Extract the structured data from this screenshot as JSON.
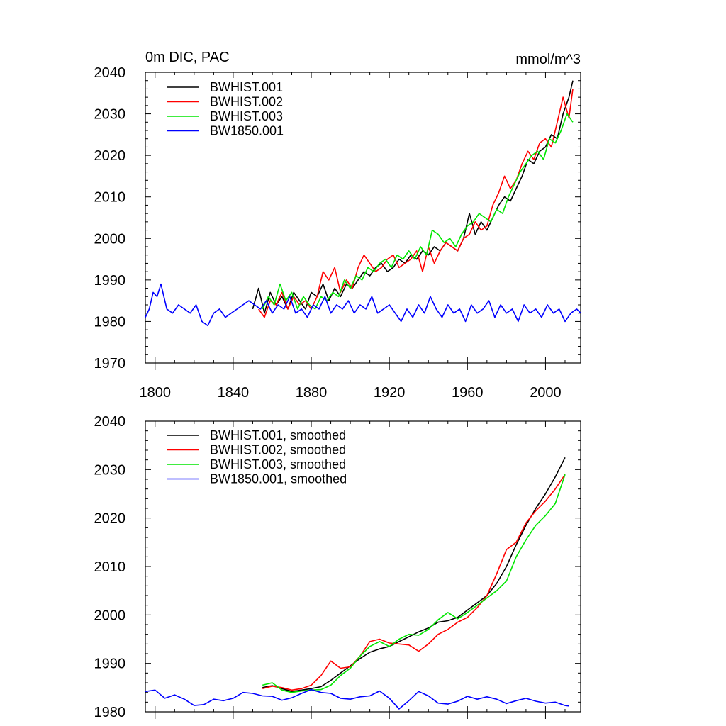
{
  "chart_data": [
    {
      "type": "line",
      "title": "0m DIC, PAC",
      "units": "mmol/m^3",
      "xlim": [
        1795,
        2018
      ],
      "ylim": [
        1970,
        2040
      ],
      "xticks": [
        1800,
        1840,
        1880,
        1920,
        1960,
        2000
      ],
      "xtick_labels": [
        "1800",
        "1840",
        "1880",
        "1920",
        "1960",
        "2000"
      ],
      "yticks": [
        1970,
        1980,
        1990,
        2000,
        2010,
        2020,
        2030,
        2040
      ],
      "ytick_labels": [
        "1970",
        "1980",
        "1990",
        "2000",
        "2010",
        "2020",
        "2030",
        "2040"
      ],
      "legend": "top-left",
      "series": [
        {
          "name": "BWHIST.001",
          "color": "#000000",
          "x": [
            1850,
            1853,
            1856,
            1859,
            1862,
            1865,
            1868,
            1871,
            1874,
            1877,
            1880,
            1883,
            1886,
            1889,
            1892,
            1895,
            1898,
            1901,
            1904,
            1907,
            1910,
            1913,
            1916,
            1919,
            1922,
            1925,
            1928,
            1931,
            1934,
            1937,
            1940,
            1943,
            1946,
            1949,
            1952,
            1955,
            1958,
            1961,
            1964,
            1967,
            1970,
            1973,
            1976,
            1979,
            1982,
            1985,
            1988,
            1991,
            1994,
            1997,
            2000,
            2003,
            2006,
            2009,
            2012,
            2014
          ],
          "values": [
            1983,
            1988,
            1982,
            1987,
            1984,
            1986,
            1983,
            1987,
            1985,
            1983,
            1987,
            1986,
            1989,
            1985,
            1988,
            1986,
            1989,
            1988,
            1990,
            1992,
            1991,
            1993,
            1994,
            1992,
            1993,
            1995,
            1994,
            1996,
            1995,
            1997,
            1996,
            1998,
            1997,
            1999,
            1998,
            1997,
            2000,
            2006,
            2001,
            2004,
            2002,
            2005,
            2008,
            2010,
            2009,
            2012,
            2015,
            2019,
            2018,
            2021,
            2022,
            2025,
            2024,
            2030,
            2034,
            2038
          ]
        },
        {
          "name": "BWHIST.002",
          "color": "#ff0000",
          "x": [
            1853,
            1856,
            1859,
            1862,
            1865,
            1868,
            1871,
            1874,
            1877,
            1880,
            1883,
            1886,
            1889,
            1892,
            1895,
            1898,
            1901,
            1904,
            1907,
            1910,
            1913,
            1916,
            1919,
            1922,
            1925,
            1928,
            1931,
            1934,
            1937,
            1940,
            1943,
            1946,
            1949,
            1952,
            1955,
            1958,
            1961,
            1964,
            1967,
            1970,
            1973,
            1976,
            1979,
            1982,
            1985,
            1988,
            1991,
            1994,
            1997,
            2000,
            2003,
            2006,
            2009,
            2012,
            2014
          ],
          "values": [
            1983,
            1981,
            1985,
            1984,
            1987,
            1983,
            1986,
            1984,
            1985,
            1983,
            1986,
            1992,
            1990,
            1993,
            1987,
            1990,
            1988,
            1993,
            1996,
            1994,
            1992,
            1993,
            1995,
            1996,
            1993,
            1994,
            1995,
            1997,
            1992,
            1998,
            1994,
            1997,
            1999,
            1998,
            1997,
            2000,
            2001,
            2004,
            2002,
            2003,
            2008,
            2011,
            2015,
            2012,
            2014,
            2018,
            2021,
            2019,
            2023,
            2024,
            2022,
            2028,
            2034,
            2029,
            2036
          ]
        },
        {
          "name": "BWHIST.003",
          "color": "#00e600",
          "x": [
            1855,
            1858,
            1861,
            1864,
            1867,
            1870,
            1873,
            1876,
            1879,
            1882,
            1885,
            1888,
            1891,
            1894,
            1897,
            1900,
            1903,
            1906,
            1909,
            1912,
            1915,
            1918,
            1921,
            1924,
            1927,
            1930,
            1933,
            1936,
            1939,
            1942,
            1945,
            1948,
            1951,
            1954,
            1957,
            1960,
            1963,
            1966,
            1969,
            1972,
            1975,
            1978,
            1981,
            1984,
            1987,
            1990,
            1993,
            1996,
            1999,
            2002,
            2005,
            2008,
            2011,
            2014
          ],
          "values": [
            1983,
            1986,
            1984,
            1989,
            1985,
            1987,
            1983,
            1986,
            1984,
            1983,
            1986,
            1985,
            1987,
            1986,
            1990,
            1988,
            1991,
            1990,
            1993,
            1992,
            1994,
            1995,
            1993,
            1996,
            1995,
            1997,
            1995,
            1998,
            1996,
            2002,
            2001,
            1999,
            2000,
            1998,
            2001,
            2003,
            2004,
            2006,
            2005,
            2004,
            2007,
            2006,
            2010,
            2013,
            2016,
            2018,
            2020,
            2021,
            2019,
            2024,
            2023,
            2026,
            2030,
            2028
          ]
        },
        {
          "name": "BW1850.001",
          "color": "#0000ff",
          "x": [
            1795,
            1797,
            1799,
            1801,
            1803,
            1806,
            1809,
            1812,
            1815,
            1818,
            1821,
            1824,
            1827,
            1830,
            1833,
            1836,
            1839,
            1842,
            1845,
            1848,
            1851,
            1854,
            1857,
            1860,
            1863,
            1866,
            1869,
            1872,
            1875,
            1878,
            1881,
            1884,
            1887,
            1890,
            1893,
            1896,
            1899,
            1902,
            1905,
            1908,
            1911,
            1914,
            1917,
            1920,
            1923,
            1926,
            1929,
            1932,
            1935,
            1938,
            1941,
            1944,
            1947,
            1950,
            1953,
            1956,
            1959,
            1962,
            1965,
            1968,
            1971,
            1974,
            1977,
            1980,
            1983,
            1986,
            1989,
            1992,
            1995,
            1998,
            2001,
            2004,
            2007,
            2010,
            2013,
            2016,
            2018
          ],
          "values": [
            1981,
            1983,
            1987,
            1986,
            1989,
            1983,
            1982,
            1984,
            1983,
            1982,
            1984,
            1980,
            1979,
            1982,
            1983,
            1981,
            1982,
            1983,
            1984,
            1985,
            1984,
            1983,
            1985,
            1982,
            1984,
            1983,
            1986,
            1982,
            1983,
            1981,
            1984,
            1983,
            1986,
            1982,
            1984,
            1983,
            1985,
            1982,
            1984,
            1983,
            1986,
            1982,
            1983,
            1984,
            1982,
            1980,
            1983,
            1981,
            1984,
            1982,
            1986,
            1983,
            1981,
            1984,
            1982,
            1983,
            1980,
            1984,
            1982,
            1983,
            1985,
            1981,
            1984,
            1982,
            1983,
            1980,
            1984,
            1982,
            1983,
            1981,
            1984,
            1982,
            1983,
            1980,
            1982,
            1983,
            1982
          ]
        }
      ]
    },
    {
      "type": "line",
      "title": "",
      "units": "",
      "xlim": [
        1795,
        2018
      ],
      "ylim": [
        1980,
        2040
      ],
      "xticks": [
        1800,
        1840,
        1880,
        1920,
        1960,
        2000
      ],
      "xtick_labels": [],
      "yticks": [
        1980,
        1990,
        2000,
        2010,
        2020,
        2030,
        2040
      ],
      "ytick_labels": [
        "1980",
        "1990",
        "2000",
        "2010",
        "2020",
        "2030",
        "2040"
      ],
      "legend": "top-left",
      "series": [
        {
          "name": "BWHIST.001, smoothed",
          "color": "#000000",
          "x": [
            1855,
            1860,
            1865,
            1870,
            1875,
            1880,
            1885,
            1890,
            1895,
            1900,
            1905,
            1910,
            1915,
            1920,
            1925,
            1930,
            1935,
            1940,
            1945,
            1950,
            1955,
            1960,
            1965,
            1970,
            1975,
            1980,
            1985,
            1990,
            1995,
            2000,
            2005,
            2010
          ],
          "values": [
            1985,
            1985.4,
            1984.8,
            1984.2,
            1984.5,
            1984.8,
            1985.2,
            1986.5,
            1988,
            1989.5,
            1991,
            1992.3,
            1993,
            1993.5,
            1994.5,
            1995.5,
            1996.5,
            1997.3,
            1998.5,
            1998.8,
            1999.5,
            2001,
            2002.5,
            2004,
            2006.5,
            2010,
            2014.5,
            2018.5,
            2022,
            2025,
            2028.5,
            2032.5
          ]
        },
        {
          "name": "BWHIST.002, smoothed",
          "color": "#ff0000",
          "x": [
            1855,
            1860,
            1865,
            1870,
            1875,
            1880,
            1885,
            1890,
            1895,
            1900,
            1905,
            1910,
            1915,
            1920,
            1925,
            1930,
            1935,
            1940,
            1945,
            1950,
            1955,
            1960,
            1965,
            1970,
            1975,
            1980,
            1985,
            1990,
            1995,
            2000,
            2005,
            2010
          ],
          "values": [
            1984.8,
            1985.3,
            1985,
            1984.5,
            1984.8,
            1985.5,
            1987.5,
            1990.5,
            1989,
            1989.3,
            1991.5,
            1994.5,
            1995,
            1994.2,
            1994,
            1993.8,
            1992.5,
            1994,
            1996,
            1997,
            1998.5,
            1999.5,
            2001.5,
            2004,
            2008.5,
            2013.5,
            2015,
            2019,
            2021.5,
            2023.5,
            2026,
            2029
          ]
        },
        {
          "name": "BWHIST.003, smoothed",
          "color": "#00e600",
          "x": [
            1855,
            1860,
            1865,
            1870,
            1875,
            1880,
            1885,
            1890,
            1895,
            1900,
            1905,
            1910,
            1915,
            1920,
            1925,
            1930,
            1935,
            1940,
            1945,
            1950,
            1955,
            1960,
            1965,
            1970,
            1975,
            1980,
            1985,
            1990,
            1995,
            2000,
            2005,
            2010
          ],
          "values": [
            1985.5,
            1986,
            1984.5,
            1984,
            1984.3,
            1984.5,
            1984.6,
            1985.5,
            1987.5,
            1989,
            1991.5,
            1993.5,
            1994.5,
            1993.5,
            1995,
            1996,
            1995.8,
            1997,
            1999,
            2000.5,
            1999.2,
            2000.5,
            2002,
            2003.5,
            2005,
            2007,
            2012,
            2015.5,
            2018.5,
            2020.5,
            2023,
            2029
          ]
        },
        {
          "name": "BW1850.001, smoothed",
          "color": "#0000ff",
          "x": [
            1795,
            1800,
            1805,
            1810,
            1815,
            1820,
            1825,
            1830,
            1835,
            1840,
            1845,
            1850,
            1855,
            1860,
            1865,
            1870,
            1875,
            1880,
            1885,
            1890,
            1895,
            1900,
            1905,
            1910,
            1915,
            1920,
            1925,
            1930,
            1935,
            1940,
            1945,
            1950,
            1955,
            1960,
            1965,
            1970,
            1975,
            1980,
            1985,
            1990,
            1995,
            2000,
            2005,
            2010,
            2012
          ],
          "values": [
            1984.2,
            1984.5,
            1982.8,
            1983.5,
            1982.6,
            1981.3,
            1981.5,
            1982.6,
            1982.3,
            1982.8,
            1984,
            1983.8,
            1983.3,
            1983.2,
            1982.4,
            1982.9,
            1983.8,
            1984.6,
            1984,
            1983.8,
            1982.8,
            1982.6,
            1983.1,
            1983.3,
            1984.3,
            1982.8,
            1980.6,
            1982.3,
            1984.2,
            1983.3,
            1981.8,
            1981.6,
            1982.2,
            1983.2,
            1982.6,
            1983.1,
            1982.6,
            1981.7,
            1982.3,
            1982.8,
            1982.2,
            1981.8,
            1982,
            1981.3,
            1981.2
          ]
        }
      ]
    }
  ]
}
